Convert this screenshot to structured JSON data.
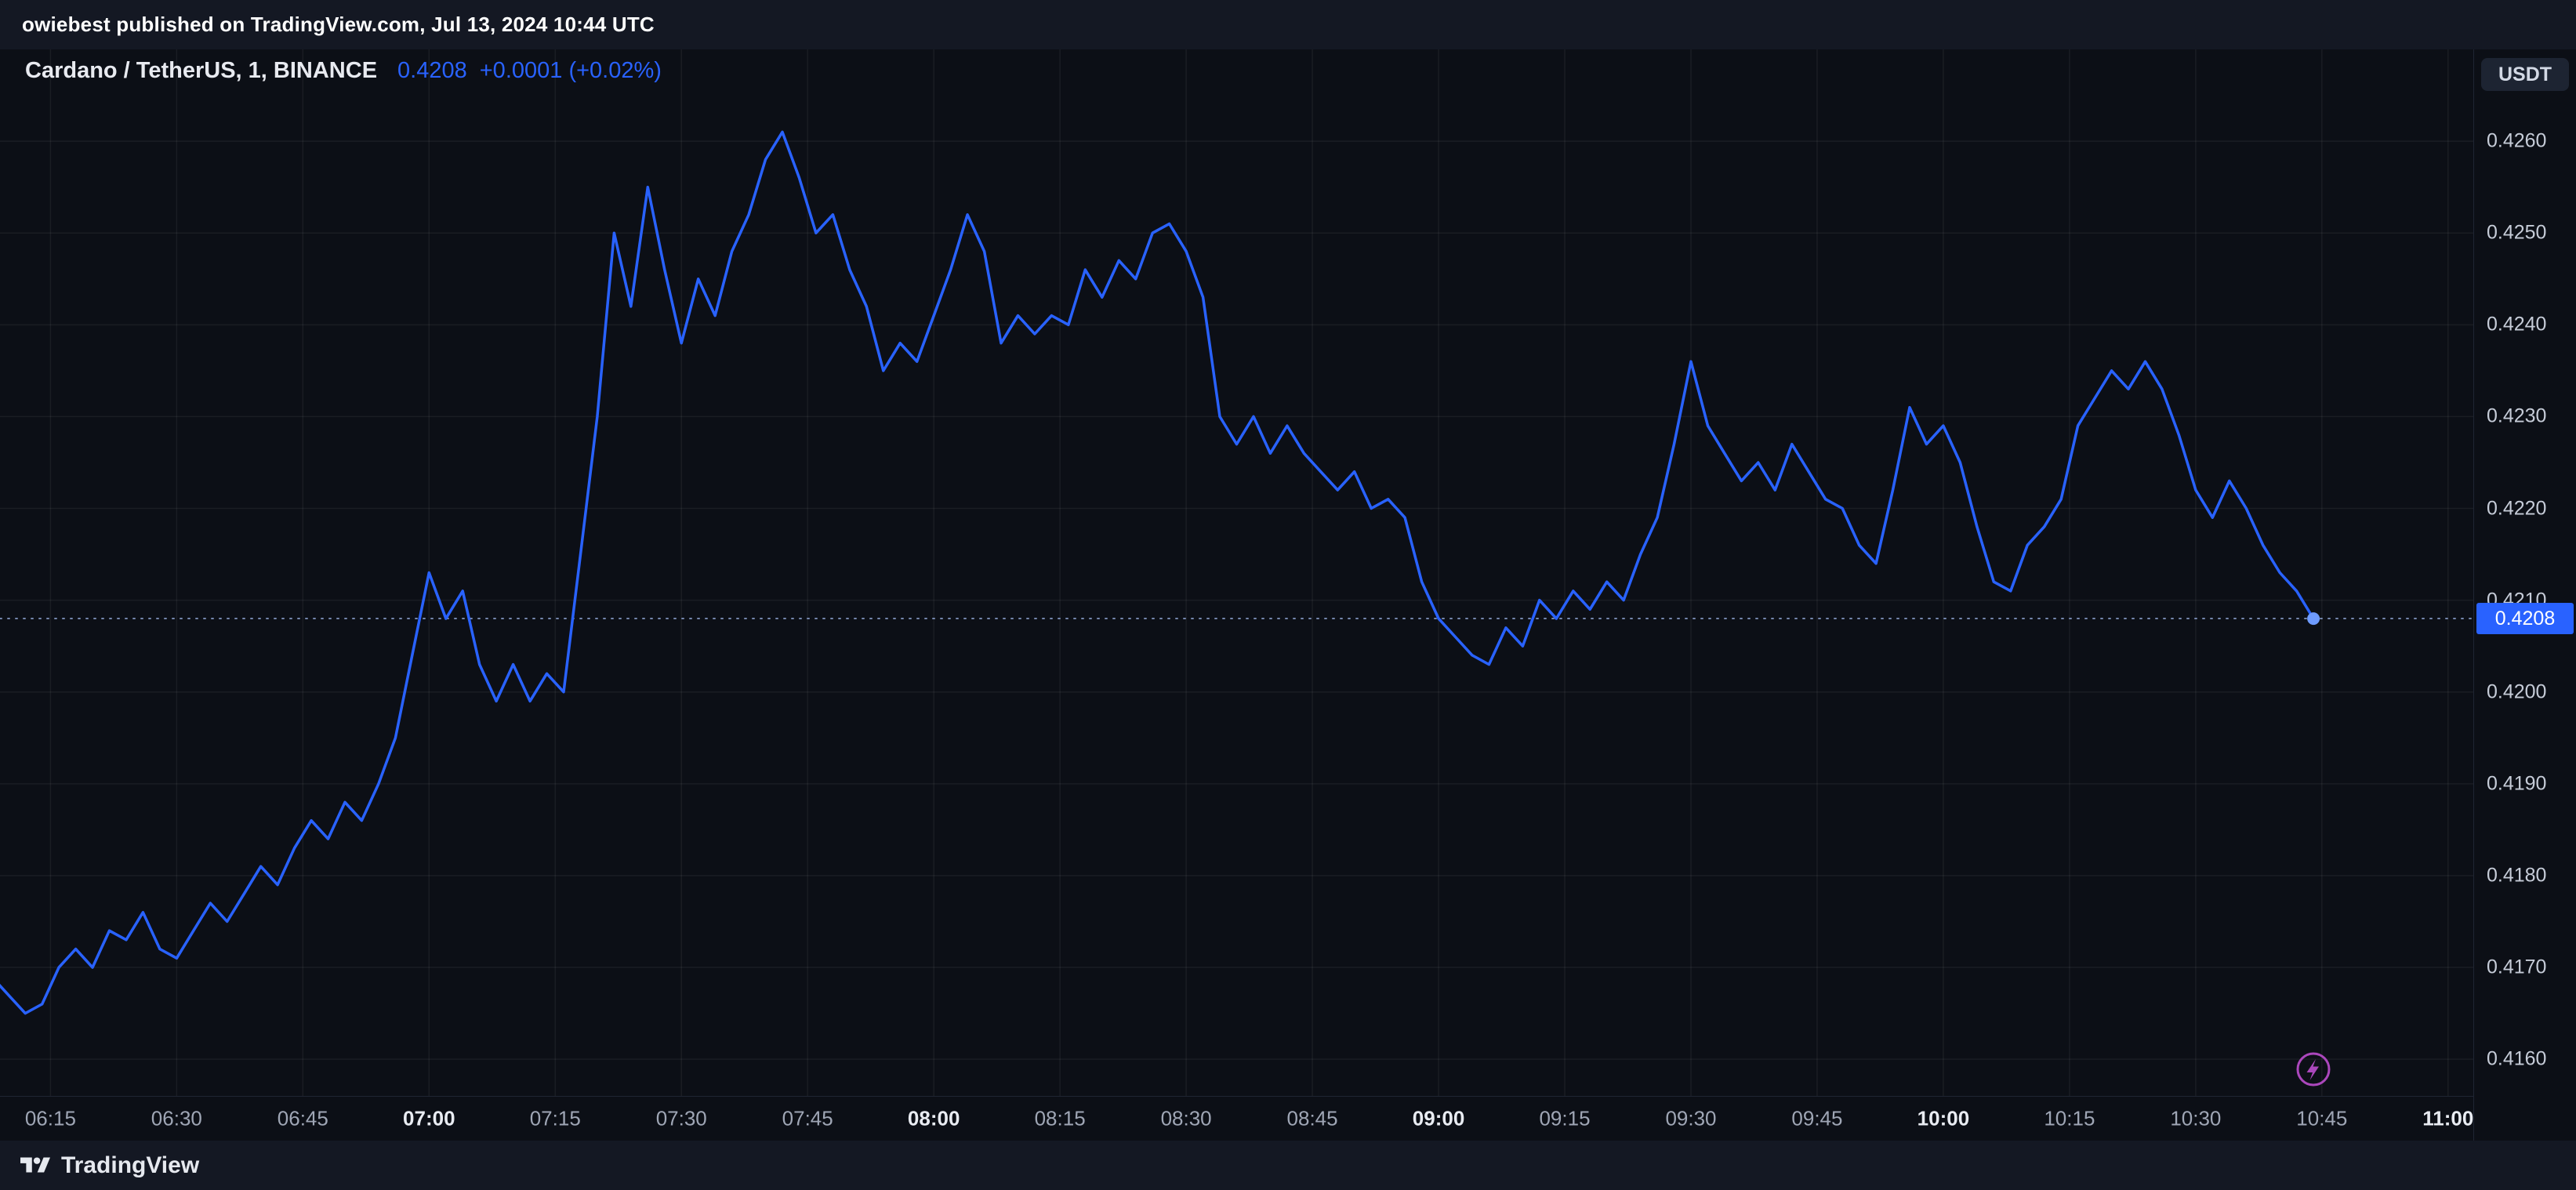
{
  "attribution": {
    "text": "owiebest published on TradingView.com, Jul 13, 2024 10:44 UTC"
  },
  "legend": {
    "symbol": "Cardano / TetherUS, 1, BINANCE",
    "price": "0.4208",
    "change": "+0.0001 (+0.02%)"
  },
  "price_scale": {
    "currency_label": "USDT",
    "last_price_label": "0.4208"
  },
  "footer": {
    "brand": "TradingView"
  },
  "colors": {
    "accent_blue": "#2962ff",
    "badge_text": "#ffffff",
    "flash_purple": "#ab47bc",
    "background": "#0c0f16",
    "bar_background": "#141823"
  },
  "chart_data": {
    "type": "line",
    "title": "Cardano / TetherUS, 1, BINANCE",
    "legend_quote": "0.4208 +0.0001 (+0.02%)",
    "last_price": 0.4208,
    "change": "+0.0001",
    "change_pct": "+0.02%",
    "grid": true,
    "x_range": [
      "06:09",
      "11:03"
    ],
    "y_range": [
      0.4156,
      0.427
    ],
    "ylabel": "USDT",
    "y_ticks": [
      "0.4260",
      "0.4250",
      "0.4240",
      "0.4230",
      "0.4220",
      "0.4210",
      "0.4200",
      "0.4190",
      "0.4180",
      "0.4170",
      "0.4160"
    ],
    "x_ticks": [
      {
        "label": "06:15",
        "bold": false
      },
      {
        "label": "06:30",
        "bold": false
      },
      {
        "label": "06:45",
        "bold": false
      },
      {
        "label": "07:00",
        "bold": true
      },
      {
        "label": "07:15",
        "bold": false
      },
      {
        "label": "07:30",
        "bold": false
      },
      {
        "label": "07:45",
        "bold": false
      },
      {
        "label": "08:00",
        "bold": true
      },
      {
        "label": "08:15",
        "bold": false
      },
      {
        "label": "08:30",
        "bold": false
      },
      {
        "label": "08:45",
        "bold": false
      },
      {
        "label": "09:00",
        "bold": true
      },
      {
        "label": "09:15",
        "bold": false
      },
      {
        "label": "09:30",
        "bold": false
      },
      {
        "label": "09:45",
        "bold": false
      },
      {
        "label": "10:00",
        "bold": true
      },
      {
        "label": "10:15",
        "bold": false
      },
      {
        "label": "10:30",
        "bold": false
      },
      {
        "label": "10:45",
        "bold": false
      },
      {
        "label": "11:00",
        "bold": true
      }
    ],
    "series": {
      "name": "Cardano / TetherUS close",
      "start_time": "06:08",
      "interval_minutes": 2,
      "values": [
        0.4169,
        0.4167,
        0.4165,
        0.4166,
        0.417,
        0.4172,
        0.417,
        0.4174,
        0.4173,
        0.4176,
        0.4172,
        0.4171,
        0.4174,
        0.4177,
        0.4175,
        0.4178,
        0.4181,
        0.4179,
        0.4183,
        0.4186,
        0.4184,
        0.4188,
        0.4186,
        0.419,
        0.4195,
        0.4204,
        0.4213,
        0.4208,
        0.4211,
        0.4203,
        0.4199,
        0.4203,
        0.4199,
        0.4202,
        0.42,
        0.4215,
        0.423,
        0.425,
        0.4242,
        0.4255,
        0.4246,
        0.4238,
        0.4245,
        0.4241,
        0.4248,
        0.4252,
        0.4258,
        0.4261,
        0.4256,
        0.425,
        0.4252,
        0.4246,
        0.4242,
        0.4235,
        0.4238,
        0.4236,
        0.4241,
        0.4246,
        0.4252,
        0.4248,
        0.4238,
        0.4241,
        0.4239,
        0.4241,
        0.424,
        0.4246,
        0.4243,
        0.4247,
        0.4245,
        0.425,
        0.4251,
        0.4248,
        0.4243,
        0.423,
        0.4227,
        0.423,
        0.4226,
        0.4229,
        0.4226,
        0.4224,
        0.4222,
        0.4224,
        0.422,
        0.4221,
        0.4219,
        0.4212,
        0.4208,
        0.4206,
        0.4204,
        0.4203,
        0.4207,
        0.4205,
        0.421,
        0.4208,
        0.4211,
        0.4209,
        0.4212,
        0.421,
        0.4215,
        0.4219,
        0.4227,
        0.4236,
        0.4229,
        0.4226,
        0.4223,
        0.4225,
        0.4222,
        0.4227,
        0.4224,
        0.4221,
        0.422,
        0.4216,
        0.4214,
        0.4222,
        0.4231,
        0.4227,
        0.4229,
        0.4225,
        0.4218,
        0.4212,
        0.4211,
        0.4216,
        0.4218,
        0.4221,
        0.4229,
        0.4232,
        0.4235,
        0.4233,
        0.4236,
        0.4233,
        0.4228,
        0.4222,
        0.4219,
        0.4223,
        0.422,
        0.4216,
        0.4213,
        0.4211,
        0.4208
      ]
    }
  }
}
